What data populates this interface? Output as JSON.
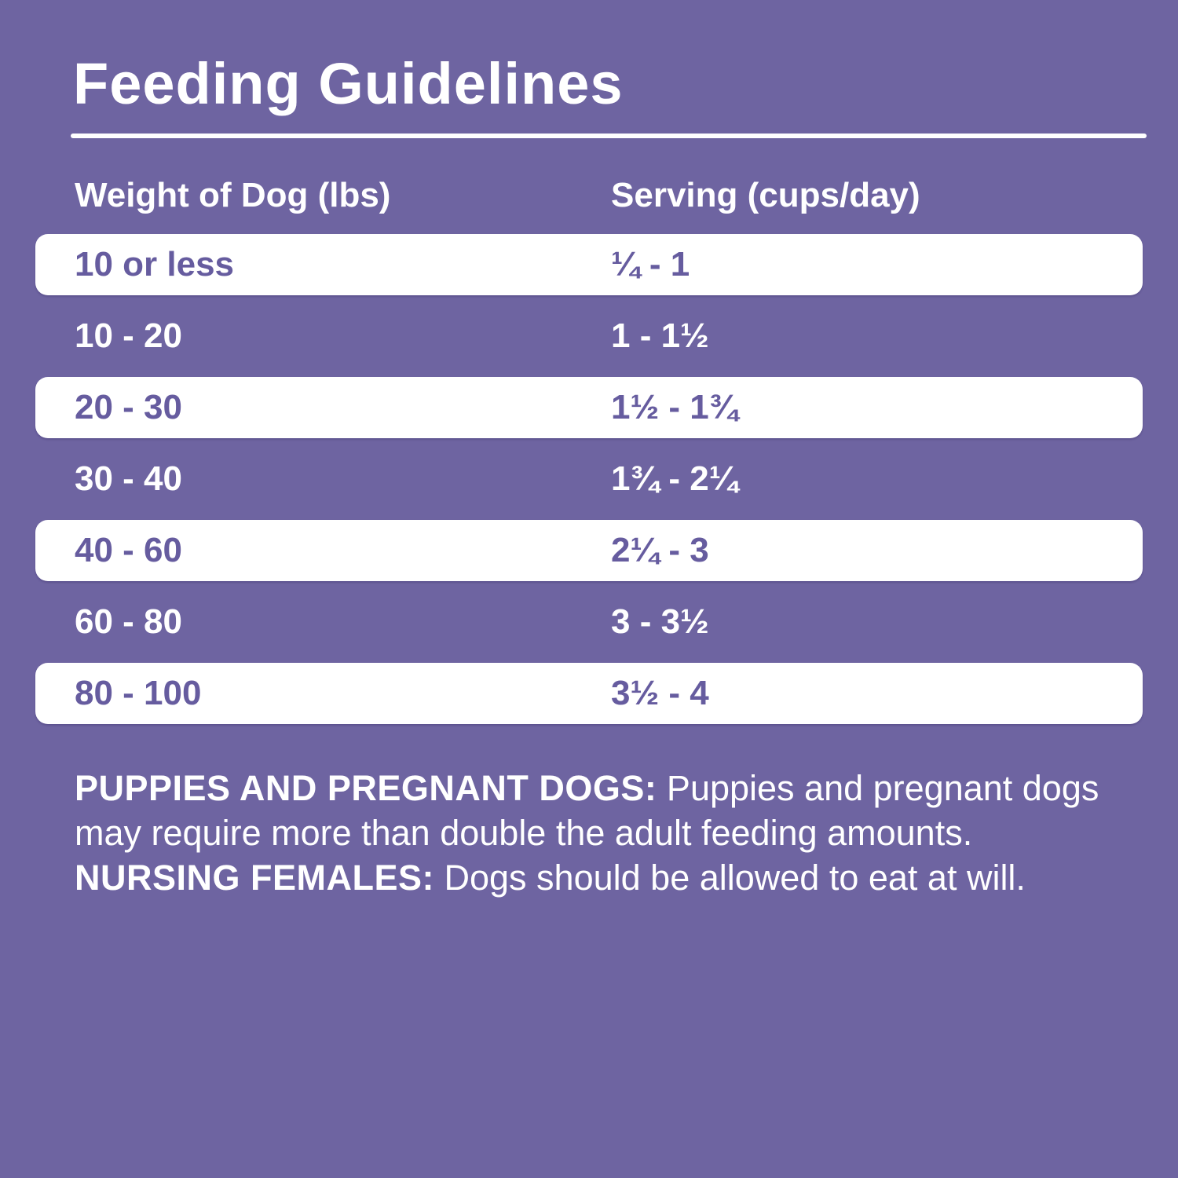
{
  "page": {
    "title": "Feeding Guidelines",
    "background_color": "#6E64A1",
    "highlight_row_color": "#FFFFFF",
    "highlight_row_text_color": "#665C9F",
    "text_color": "#FFFFFF"
  },
  "table": {
    "columns": [
      "Weight of Dog (lbs)",
      "Serving (cups/day)"
    ],
    "rows": [
      {
        "weight": "10 or less",
        "serving": "¼ - 1",
        "highlighted": true
      },
      {
        "weight": "10 - 20",
        "serving": "1 - 1½",
        "highlighted": false
      },
      {
        "weight": "20 - 30",
        "serving": "1½ - 1¾",
        "highlighted": true
      },
      {
        "weight": "30 - 40",
        "serving": "1¾ - 2¼",
        "highlighted": false
      },
      {
        "weight": "40 - 60",
        "serving": "2¼ - 3",
        "highlighted": true
      },
      {
        "weight": "60 - 80",
        "serving": "3 - 3½",
        "highlighted": false
      },
      {
        "weight": "80 - 100",
        "serving": "3½ - 4",
        "highlighted": true
      }
    ]
  },
  "notes": {
    "label_puppies": "PUPPIES AND PREGNANT DOGS:",
    "text_puppies": " Puppies and pregnant dogs may require more than double the adult feeding amounts. ",
    "label_nursing": "NURSING FEMALES:",
    "text_nursing": " Dogs should be allowed to eat at will."
  }
}
